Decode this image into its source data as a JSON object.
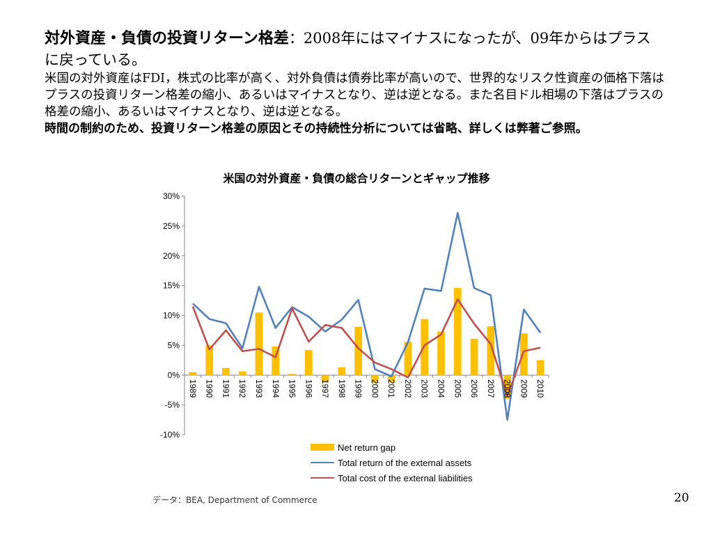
{
  "slide": {
    "heading_bold": "対外資産・負債の投資リターン格差",
    "heading_rest": "：2008年にはマイナスになったが、09年からはプラスに戻っている。",
    "paragraph1": "米国の対外資産はFDI，株式の比率が高く、対外負債は債券比率が高いので、世界的なリスク性資産の価格下落はプラスの投資リターン格差の縮小、あるいはマイナスとなり、逆は逆となる。また名目ドル相場の下落はプラスの格差の縮小、あるいはマイナスとなり、逆は逆となる。",
    "paragraph2": "時間の制約のため、投資リターン格差の原因とその持続性分析については省略、詳しくは弊著ご参照。",
    "source": "データ：BEA, Department of Commerce",
    "page_number": "20"
  },
  "chart_data": {
    "type": "bar+line",
    "title": "米国の対外資産・負債の総合リターンとギャップ推移",
    "categories": [
      "1989",
      "1990",
      "1991",
      "1992",
      "1993",
      "1994",
      "1995",
      "1996",
      "1997",
      "1998",
      "1999",
      "2000",
      "2001",
      "2002",
      "2003",
      "2004",
      "2005",
      "2006",
      "2007",
      "2008",
      "2009",
      "2010"
    ],
    "ylim": [
      -10,
      30
    ],
    "yticks": [
      -10,
      -5,
      0,
      5,
      10,
      15,
      20,
      25,
      30
    ],
    "ytick_labels": [
      "-10%",
      "-5%",
      "0%",
      "5%",
      "10%",
      "15%",
      "20%",
      "25%",
      "30%"
    ],
    "series": [
      {
        "name": "Net return gap",
        "kind": "bar",
        "color": "#ffc000",
        "values": [
          0.5,
          5.0,
          1.2,
          0.6,
          10.5,
          4.8,
          0.2,
          4.2,
          -1.2,
          1.3,
          8.1,
          -1.3,
          -1.2,
          5.6,
          9.4,
          7.3,
          14.6,
          6.1,
          8.2,
          -4.0,
          7.0,
          2.5
        ]
      },
      {
        "name": "Total return of the external assets",
        "kind": "line",
        "color": "#4f81bd",
        "values": [
          12.0,
          9.4,
          8.7,
          4.5,
          14.8,
          7.9,
          11.4,
          9.8,
          7.3,
          9.3,
          12.6,
          1.0,
          -0.2,
          5.5,
          14.5,
          14.1,
          27.2,
          14.6,
          13.4,
          -7.5,
          11.0,
          7.1
        ]
      },
      {
        "name": "Total cost of the external liabilities",
        "kind": "line",
        "color": "#c0504d",
        "values": [
          11.5,
          4.3,
          7.5,
          4.0,
          4.4,
          3.0,
          11.2,
          5.6,
          8.4,
          7.9,
          4.5,
          2.1,
          1.0,
          -0.4,
          5.0,
          6.8,
          12.7,
          8.6,
          5.2,
          -3.5,
          4.0,
          4.6
        ]
      }
    ],
    "legend_position": "bottom",
    "grid": false
  }
}
